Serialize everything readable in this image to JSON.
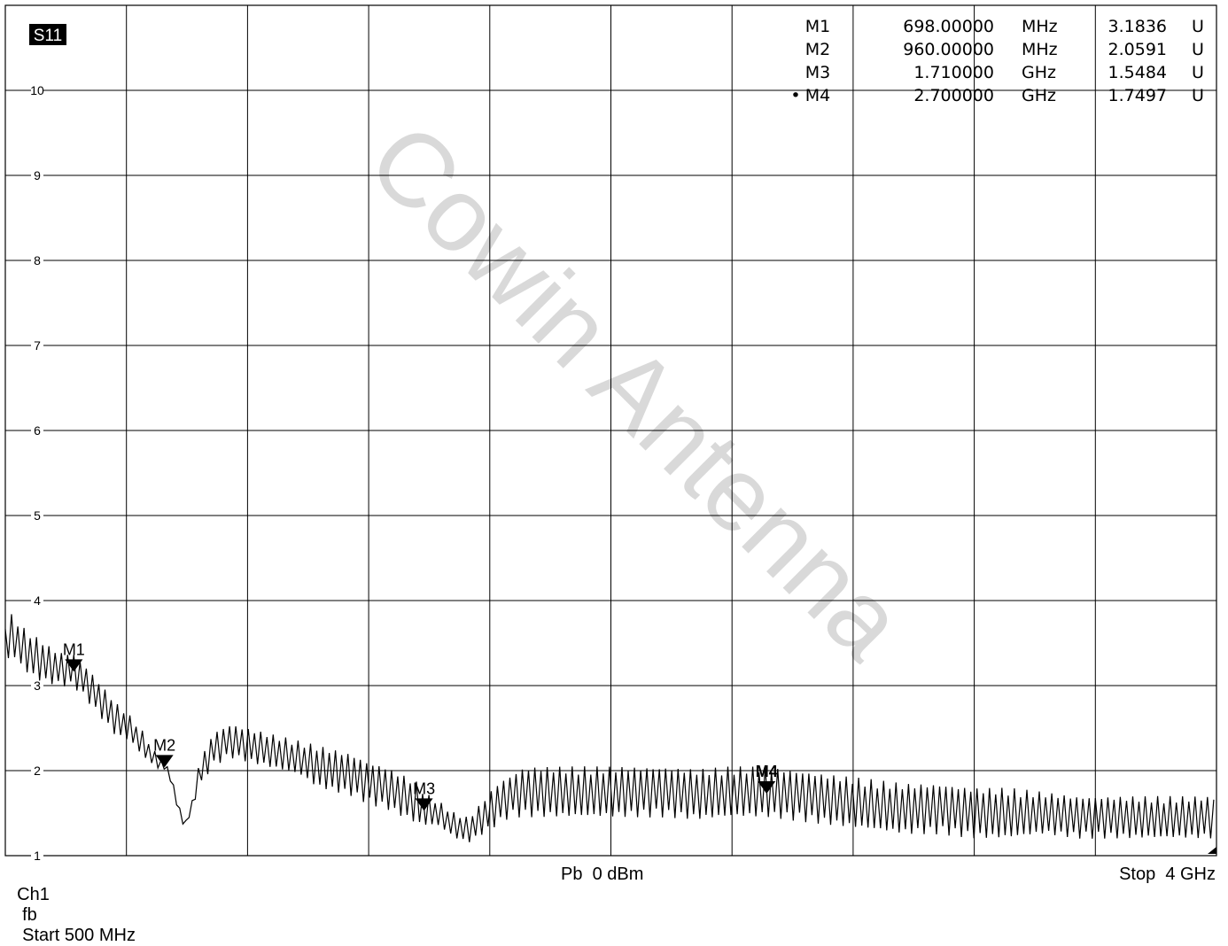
{
  "trace": {
    "label": "S11"
  },
  "marker_table": [
    {
      "id": "M1",
      "freq": "698.00000",
      "unit": "MHz",
      "value": "3.1836",
      "value_unit": "U",
      "active": false
    },
    {
      "id": "M2",
      "freq": "960.00000",
      "unit": "MHz",
      "value": "2.0591",
      "value_unit": "U",
      "active": false
    },
    {
      "id": "M3",
      "freq": "1.710000",
      "unit": "GHz",
      "value": "1.5484",
      "value_unit": "U",
      "active": false
    },
    {
      "id": "M4",
      "freq": "2.700000",
      "unit": "GHz",
      "value": "1.7497",
      "value_unit": "U",
      "active": true
    }
  ],
  "watermark": "Cowin Antenna",
  "footer": {
    "channel": "Ch1",
    "format": "fb",
    "start": "Start 500 MHz",
    "power": "Pb  0 dBm",
    "stop": "Stop  4 GHz"
  },
  "chart_data": {
    "type": "line",
    "title": "",
    "xlabel": "",
    "ylabel": "",
    "xlim": [
      500,
      4000
    ],
    "x_unit": "MHz",
    "ylim": [
      1,
      11
    ],
    "yticks": [
      1,
      2,
      3,
      4,
      5,
      6,
      7,
      8,
      9,
      10
    ],
    "grid": true,
    "series": [
      {
        "envelope_x": [
          500,
          520,
          560,
          600,
          650,
          698,
          740,
          780,
          820,
          860,
          900,
          940,
          960,
          980,
          1000,
          1020,
          1040,
          1060,
          1100,
          1150,
          1200,
          1250,
          1300,
          1350,
          1400,
          1450,
          1500,
          1550,
          1600,
          1650,
          1700,
          1710,
          1750,
          1800,
          1840,
          1880,
          1920,
          1960,
          2000,
          2050,
          2100,
          2200,
          2300,
          2400,
          2500,
          2600,
          2700,
          2800,
          2900,
          3000,
          3100,
          3200,
          3300,
          3400,
          3500,
          3600,
          3700,
          3800,
          3900,
          4000
        ],
        "envelope_y": [
          3.5,
          3.6,
          3.4,
          3.3,
          3.2,
          3.18,
          3.0,
          2.8,
          2.6,
          2.5,
          2.3,
          2.1,
          2.06,
          1.9,
          1.55,
          1.35,
          1.6,
          1.95,
          2.25,
          2.35,
          2.3,
          2.25,
          2.2,
          2.15,
          2.05,
          2.0,
          1.95,
          1.85,
          1.8,
          1.7,
          1.6,
          1.55,
          1.5,
          1.35,
          1.3,
          1.45,
          1.6,
          1.7,
          1.75,
          1.75,
          1.75,
          1.75,
          1.75,
          1.75,
          1.72,
          1.75,
          1.75,
          1.7,
          1.65,
          1.6,
          1.55,
          1.55,
          1.5,
          1.5,
          1.5,
          1.45,
          1.45,
          1.45,
          1.45,
          1.45
        ],
        "ripple_peak_to_peak": [
          0.5,
          0.5,
          0.5,
          0.5,
          0.4,
          0.4,
          0.4,
          0.4,
          0.4,
          0.3,
          0.3,
          0.15,
          0.1,
          0.1,
          0.1,
          0.1,
          0.1,
          0.3,
          0.4,
          0.4,
          0.4,
          0.4,
          0.4,
          0.4,
          0.5,
          0.5,
          0.5,
          0.5,
          0.5,
          0.5,
          0.5,
          0.4,
          0.3,
          0.3,
          0.3,
          0.4,
          0.5,
          0.5,
          0.6,
          0.6,
          0.6,
          0.6,
          0.6,
          0.6,
          0.6,
          0.6,
          0.6,
          0.6,
          0.6,
          0.6,
          0.6,
          0.6,
          0.6,
          0.6,
          0.5,
          0.5,
          0.5,
          0.5,
          0.5,
          0.5
        ],
        "ripple_cycle_mhz": 18
      }
    ],
    "markers": [
      {
        "name": "M1",
        "x": 698,
        "y": 3.1836
      },
      {
        "name": "M2",
        "x": 960,
        "y": 2.0591
      },
      {
        "name": "M3",
        "x": 1710,
        "y": 1.5484
      },
      {
        "name": "M4",
        "x": 2700,
        "y": 1.7497
      }
    ],
    "colors": {
      "trace": "#000000",
      "grid": "#000000",
      "watermark": "#d9d9d9"
    }
  }
}
